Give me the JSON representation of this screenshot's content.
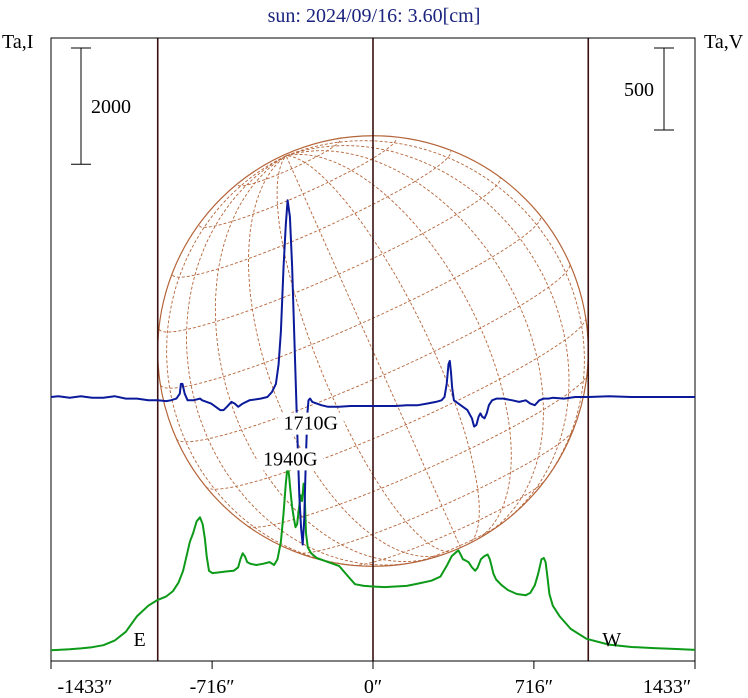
{
  "chart_data": {
    "type": "line",
    "title": "sun: 2024/09/16: 3.60[cm]",
    "left_axis_label": "Ta,I",
    "right_axis_label": "Ta,V",
    "xlim": [
      -1433,
      1433
    ],
    "x_ticks": [
      -1433,
      -716,
      0,
      716,
      1433
    ],
    "x_tick_labels": [
      "-1433″",
      "-716″",
      "0″",
      "716″",
      "1433″"
    ],
    "limb_markers": [
      {
        "label": "E",
        "x": -958
      },
      {
        "label": "W",
        "x": 958
      }
    ],
    "scale_bars": [
      {
        "axis": "left",
        "label": "2000",
        "value": 2000
      },
      {
        "axis": "right",
        "label": "500",
        "value": 500
      }
    ],
    "annotations": [
      {
        "text": "1940G",
        "x": -368,
        "series": "I"
      },
      {
        "text": "1710G",
        "x": -277,
        "series": "V"
      }
    ],
    "colors": {
      "title": "#1a237e",
      "stokes_I": "#0c9a18",
      "stokes_V": "#0a1a9a",
      "disk": "#b5653a",
      "vertical_lines": "#3a1010"
    },
    "series": [
      {
        "key": "I",
        "color": "#0c9a18",
        "points": [
          [
            -1433,
            135
          ],
          [
            -1400,
            140
          ],
          [
            -1350,
            150
          ],
          [
            -1300,
            165
          ],
          [
            -1250,
            185
          ],
          [
            -1200,
            220
          ],
          [
            -1150,
            300
          ],
          [
            -1100,
            450
          ],
          [
            -1050,
            720
          ],
          [
            -1000,
            900
          ],
          [
            -958,
            1000
          ],
          [
            -920,
            1060
          ],
          [
            -890,
            1150
          ],
          [
            -865,
            1300
          ],
          [
            -845,
            1500
          ],
          [
            -830,
            1750
          ],
          [
            -815,
            2000
          ],
          [
            -800,
            2150
          ],
          [
            -785,
            2350
          ],
          [
            -770,
            2420
          ],
          [
            -758,
            2300
          ],
          [
            -748,
            2050
          ],
          [
            -740,
            1750
          ],
          [
            -730,
            1500
          ],
          [
            -715,
            1460
          ],
          [
            -690,
            1470
          ],
          [
            -650,
            1490
          ],
          [
            -620,
            1500
          ],
          [
            -600,
            1560
          ],
          [
            -590,
            1700
          ],
          [
            -580,
            1800
          ],
          [
            -570,
            1750
          ],
          [
            -560,
            1650
          ],
          [
            -545,
            1620
          ],
          [
            -520,
            1600
          ],
          [
            -490,
            1620
          ],
          [
            -460,
            1650
          ],
          [
            -440,
            1600
          ],
          [
            -425,
            1700
          ],
          [
            -410,
            2000
          ],
          [
            -398,
            2500
          ],
          [
            -388,
            3000
          ],
          [
            -380,
            3300
          ],
          [
            -374,
            3150
          ],
          [
            -368,
            2900
          ],
          [
            -360,
            2600
          ],
          [
            -352,
            2400
          ],
          [
            -345,
            2250
          ],
          [
            -338,
            2300
          ],
          [
            -330,
            2550
          ],
          [
            -322,
            2800
          ],
          [
            -316,
            2700
          ],
          [
            -309,
            3000
          ],
          [
            -304,
            2800
          ],
          [
            -298,
            2150
          ],
          [
            -290,
            1900
          ],
          [
            -275,
            1800
          ],
          [
            -250,
            1720
          ],
          [
            -200,
            1650
          ],
          [
            -150,
            1580
          ],
          [
            -110,
            1400
          ],
          [
            -80,
            1270
          ],
          [
            -40,
            1240
          ],
          [
            0,
            1230
          ],
          [
            50,
            1220
          ],
          [
            100,
            1230
          ],
          [
            150,
            1240
          ],
          [
            200,
            1280
          ],
          [
            260,
            1330
          ],
          [
            300,
            1400
          ],
          [
            330,
            1600
          ],
          [
            350,
            1750
          ],
          [
            370,
            1820
          ],
          [
            380,
            1850
          ],
          [
            390,
            1780
          ],
          [
            400,
            1700
          ],
          [
            410,
            1680
          ],
          [
            425,
            1650
          ],
          [
            440,
            1560
          ],
          [
            455,
            1500
          ],
          [
            465,
            1550
          ],
          [
            480,
            1700
          ],
          [
            495,
            1750
          ],
          [
            510,
            1780
          ],
          [
            520,
            1700
          ],
          [
            528,
            1580
          ],
          [
            536,
            1450
          ],
          [
            548,
            1350
          ],
          [
            570,
            1260
          ],
          [
            600,
            1170
          ],
          [
            640,
            1100
          ],
          [
            680,
            1080
          ],
          [
            700,
            1120
          ],
          [
            720,
            1250
          ],
          [
            735,
            1450
          ],
          [
            750,
            1700
          ],
          [
            760,
            1720
          ],
          [
            768,
            1650
          ],
          [
            776,
            1400
          ],
          [
            785,
            1100
          ],
          [
            800,
            900
          ],
          [
            830,
            720
          ],
          [
            880,
            500
          ],
          [
            950,
            330
          ],
          [
            1050,
            230
          ],
          [
            1150,
            190
          ],
          [
            1250,
            170
          ],
          [
            1350,
            155
          ],
          [
            1433,
            140
          ]
        ]
      },
      {
        "key": "V",
        "color": "#0a1a9a",
        "points": [
          [
            -1433,
            0
          ],
          [
            -1400,
            5
          ],
          [
            -1350,
            -5
          ],
          [
            -1300,
            5
          ],
          [
            -1250,
            -5
          ],
          [
            -1200,
            -5
          ],
          [
            -1150,
            5
          ],
          [
            -1100,
            -10
          ],
          [
            -1050,
            -10
          ],
          [
            -1000,
            -20
          ],
          [
            -958,
            -20
          ],
          [
            -920,
            -25
          ],
          [
            -900,
            -20
          ],
          [
            -875,
            -10
          ],
          [
            -860,
            20
          ],
          [
            -855,
            80
          ],
          [
            -848,
            80
          ],
          [
            -838,
            20
          ],
          [
            -825,
            -20
          ],
          [
            -800,
            -20
          ],
          [
            -770,
            -10
          ],
          [
            -760,
            -20
          ],
          [
            -740,
            -30
          ],
          [
            -720,
            -40
          ],
          [
            -700,
            -60
          ],
          [
            -680,
            -80
          ],
          [
            -665,
            -80
          ],
          [
            -650,
            -60
          ],
          [
            -630,
            -30
          ],
          [
            -615,
            -40
          ],
          [
            -600,
            -60
          ],
          [
            -580,
            -40
          ],
          [
            -550,
            -20
          ],
          [
            -500,
            -10
          ],
          [
            -470,
            0
          ],
          [
            -450,
            30
          ],
          [
            -432,
            80
          ],
          [
            -420,
            200
          ],
          [
            -410,
            400
          ],
          [
            -398,
            800
          ],
          [
            -388,
            1050
          ],
          [
            -380,
            1200
          ],
          [
            -370,
            1100
          ],
          [
            -360,
            800
          ],
          [
            -350,
            350
          ],
          [
            -342,
            0
          ],
          [
            -335,
            -300
          ],
          [
            -328,
            -600
          ],
          [
            -320,
            -800
          ],
          [
            -313,
            -900
          ],
          [
            -306,
            -750
          ],
          [
            -298,
            -350
          ],
          [
            -292,
            -100
          ],
          [
            -287,
            -20
          ],
          [
            -280,
            -10
          ],
          [
            -270,
            -30
          ],
          [
            -250,
            -40
          ],
          [
            -230,
            -50
          ],
          [
            -200,
            -60
          ],
          [
            -150,
            -60
          ],
          [
            -100,
            -55
          ],
          [
            -50,
            -55
          ],
          [
            0,
            -55
          ],
          [
            50,
            -55
          ],
          [
            100,
            -55
          ],
          [
            150,
            -50
          ],
          [
            200,
            -50
          ],
          [
            240,
            -40
          ],
          [
            280,
            -30
          ],
          [
            305,
            -20
          ],
          [
            318,
            0
          ],
          [
            328,
            80
          ],
          [
            336,
            200
          ],
          [
            342,
            220
          ],
          [
            347,
            150
          ],
          [
            352,
            60
          ],
          [
            360,
            -20
          ],
          [
            380,
            -40
          ],
          [
            400,
            -60
          ],
          [
            420,
            -80
          ],
          [
            440,
            -130
          ],
          [
            450,
            -180
          ],
          [
            460,
            -170
          ],
          [
            470,
            -120
          ],
          [
            478,
            -100
          ],
          [
            486,
            -120
          ],
          [
            496,
            -130
          ],
          [
            506,
            -100
          ],
          [
            516,
            -50
          ],
          [
            530,
            -20
          ],
          [
            550,
            -10
          ],
          [
            580,
            -10
          ],
          [
            620,
            -20
          ],
          [
            650,
            -30
          ],
          [
            680,
            -20
          ],
          [
            700,
            -40
          ],
          [
            720,
            -50
          ],
          [
            740,
            -20
          ],
          [
            760,
            -10
          ],
          [
            780,
            -10
          ],
          [
            800,
            -5
          ],
          [
            850,
            -10
          ],
          [
            900,
            0
          ],
          [
            960,
            0
          ],
          [
            1050,
            5
          ],
          [
            1150,
            0
          ],
          [
            1250,
            0
          ],
          [
            1350,
            0
          ],
          [
            1433,
            0
          ]
        ]
      }
    ]
  }
}
